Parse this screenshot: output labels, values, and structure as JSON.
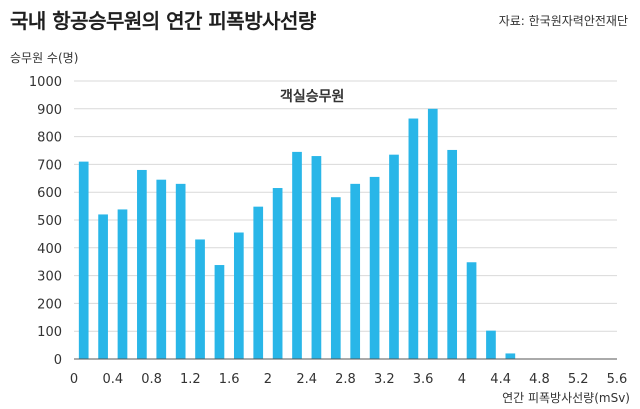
{
  "title": "국내 항공승무원의 연간 피폭방사선량",
  "source": "자료: 한국원자력안전재단",
  "colors": {
    "bar": "#29b6e8",
    "axis": "#555555",
    "grid": "#d9d9d9"
  },
  "chart_data": {
    "type": "bar",
    "title": "국내 항공승무원의 연간 피폭방사선량",
    "annotation": "객실승무원",
    "ylabel": "승무원 수(명)",
    "xlabel": "연간 피폭방사선량(mSv)",
    "ylim": [
      0,
      1000
    ],
    "yticks": [
      0,
      100,
      200,
      300,
      400,
      500,
      600,
      700,
      800,
      900,
      1000
    ],
    "xlim": [
      0,
      5.6
    ],
    "xticks": [
      "0",
      "0.4",
      "0.8",
      "1.2",
      "1.6",
      "2",
      "2.4",
      "2.8",
      "3.2",
      "3.6",
      "4",
      "4.4",
      "4.8",
      "5.2",
      "5.6"
    ],
    "bin_width": 0.2,
    "bins": [
      {
        "x": 0.1,
        "value": 710
      },
      {
        "x": 0.3,
        "value": 520
      },
      {
        "x": 0.5,
        "value": 538
      },
      {
        "x": 0.7,
        "value": 680
      },
      {
        "x": 0.9,
        "value": 645
      },
      {
        "x": 1.1,
        "value": 630
      },
      {
        "x": 1.3,
        "value": 430
      },
      {
        "x": 1.5,
        "value": 338
      },
      {
        "x": 1.7,
        "value": 455
      },
      {
        "x": 1.9,
        "value": 548
      },
      {
        "x": 2.1,
        "value": 615
      },
      {
        "x": 2.3,
        "value": 745
      },
      {
        "x": 2.5,
        "value": 730
      },
      {
        "x": 2.7,
        "value": 582
      },
      {
        "x": 2.9,
        "value": 630
      },
      {
        "x": 3.1,
        "value": 655
      },
      {
        "x": 3.3,
        "value": 735
      },
      {
        "x": 3.5,
        "value": 865
      },
      {
        "x": 3.7,
        "value": 900
      },
      {
        "x": 3.9,
        "value": 752
      },
      {
        "x": 4.1,
        "value": 348
      },
      {
        "x": 4.3,
        "value": 102
      },
      {
        "x": 4.5,
        "value": 20
      }
    ],
    "grid": true
  }
}
